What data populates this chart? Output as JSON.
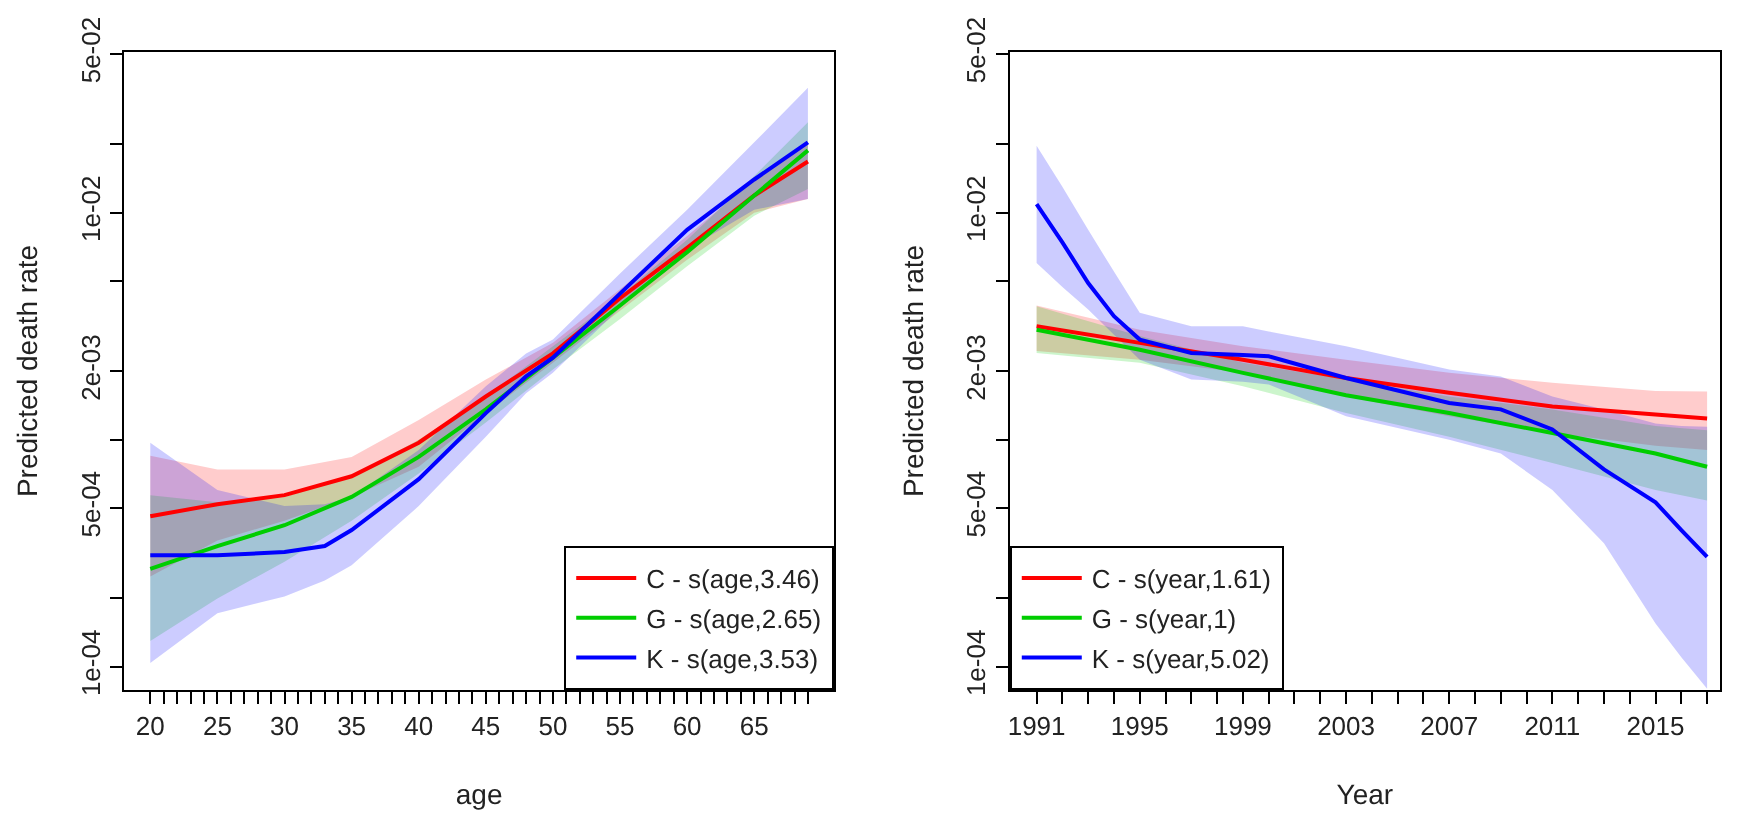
{
  "chart_data": [
    {
      "type": "line",
      "xlabel": "age",
      "ylabel": "Predicted death rate",
      "log": true,
      "legend": "bottom right",
      "marker": "none",
      "line_style": "solid",
      "xlim": [
        18.04,
        70.96
      ],
      "ylim": [
        7.9e-05,
        0.051
      ],
      "xticks": [
        20,
        {
          "value": 21,
          "label": null
        },
        {
          "value": 22,
          "label": null
        },
        {
          "value": 23,
          "label": null
        },
        {
          "value": 24,
          "label": null
        },
        25,
        {
          "value": 26,
          "label": null
        },
        {
          "value": 27,
          "label": null
        },
        {
          "value": 28,
          "label": null
        },
        {
          "value": 29,
          "label": null
        },
        30,
        {
          "value": 31,
          "label": null
        },
        {
          "value": 32,
          "label": null
        },
        {
          "value": 33,
          "label": null
        },
        {
          "value": 34,
          "label": null
        },
        35,
        {
          "value": 36,
          "label": null
        },
        {
          "value": 37,
          "label": null
        },
        {
          "value": 38,
          "label": null
        },
        {
          "value": 39,
          "label": null
        },
        40,
        {
          "value": 41,
          "label": null
        },
        {
          "value": 42,
          "label": null
        },
        {
          "value": 43,
          "label": null
        },
        {
          "value": 44,
          "label": null
        },
        45,
        {
          "value": 46,
          "label": null
        },
        {
          "value": 47,
          "label": null
        },
        {
          "value": 48,
          "label": null
        },
        {
          "value": 49,
          "label": null
        },
        50,
        {
          "value": 51,
          "label": null
        },
        {
          "value": 52,
          "label": null
        },
        {
          "value": 53,
          "label": null
        },
        {
          "value": 54,
          "label": null
        },
        55,
        {
          "value": 56,
          "label": null
        },
        {
          "value": 57,
          "label": null
        },
        {
          "value": 58,
          "label": null
        },
        {
          "value": 59,
          "label": null
        },
        60,
        {
          "value": 61,
          "label": null
        },
        {
          "value": 62,
          "label": null
        },
        {
          "value": 63,
          "label": null
        },
        {
          "value": 64,
          "label": null
        },
        65,
        {
          "value": 66,
          "label": null
        },
        {
          "value": 67,
          "label": null
        },
        {
          "value": 68,
          "label": null
        },
        {
          "value": 69,
          "label": null
        }
      ],
      "yticks": [
        {
          "value": 0.0001,
          "label": "1e-04"
        },
        {
          "value": 0.0002,
          "label": null
        },
        {
          "value": 0.0005,
          "label": "5e-04"
        },
        {
          "value": 0.001,
          "label": null
        },
        {
          "value": 0.002,
          "label": "2e-03"
        },
        {
          "value": 0.005,
          "label": null
        },
        {
          "value": 0.01,
          "label": "1e-02"
        },
        {
          "value": 0.02,
          "label": null
        },
        {
          "value": 0.05,
          "label": "5e-02"
        }
      ],
      "series": [
        {
          "name": "C - s(age,3.46)",
          "color": "#ff0000",
          "x": [
            20,
            25,
            30,
            35,
            40,
            45,
            50,
            55,
            60,
            65,
            69
          ],
          "values": [
            0.00046,
            0.00052,
            0.00057,
            0.00069,
            0.00097,
            0.00155,
            0.0024,
            0.0042,
            0.007,
            0.0119,
            0.0168
          ],
          "upper": [
            0.00085,
            0.00074,
            0.00074,
            0.00084,
            0.00122,
            0.00184,
            0.00267,
            0.0046,
            0.0079,
            0.014,
            0.0204
          ],
          "lower": [
            0.00025,
            0.00036,
            0.00044,
            0.00056,
            0.00076,
            0.00131,
            0.00218,
            0.0037,
            0.0062,
            0.01,
            0.0115
          ]
        },
        {
          "name": "G - s(age,2.65)",
          "color": "#00cd00",
          "x": [
            20,
            25,
            30,
            35,
            40,
            45,
            50,
            55,
            60,
            65,
            69
          ],
          "values": [
            0.00027,
            0.00034,
            0.00042,
            0.00056,
            0.00084,
            0.00136,
            0.0023,
            0.0039,
            0.0067,
            0.0119,
            0.0188
          ],
          "upper": [
            0.00057,
            0.00053,
            0.00056,
            0.00069,
            0.001,
            0.00155,
            0.00258,
            0.0043,
            0.0076,
            0.0145,
            0.025
          ],
          "lower": [
            0.00013,
            0.0002,
            0.00029,
            0.00044,
            0.00071,
            0.00119,
            0.00204,
            0.0034,
            0.0058,
            0.0097,
            0.0127
          ]
        },
        {
          "name": "K - s(age,3.53)",
          "color": "#0000ff",
          "x": [
            20,
            25,
            30,
            33,
            35,
            40,
            45,
            48,
            50,
            55,
            60,
            65,
            69
          ],
          "values": [
            0.00031,
            0.00031,
            0.00032,
            0.00034,
            0.0004,
            0.00067,
            0.00131,
            0.0019,
            0.0023,
            0.0044,
            0.0084,
            0.014,
            0.0204
          ],
          "upper": [
            0.00097,
            0.0006,
            0.00051,
            0.00052,
            0.00056,
            0.0009,
            0.00172,
            0.0024,
            0.00276,
            0.0054,
            0.0103,
            0.0204,
            0.0355
          ],
          "lower": [
            0.000104,
            0.000172,
            0.000204,
            0.00024,
            0.00028,
            0.00051,
            0.00103,
            0.0016,
            0.00197,
            0.0038,
            0.0069,
            0.0103,
            0.0115
          ]
        }
      ]
    },
    {
      "type": "line",
      "xlabel": "Year",
      "ylabel": "Predicted death rate",
      "log": true,
      "legend": "bottom left",
      "marker": "none",
      "line_style": "solid",
      "xlim": [
        1989.96,
        2017.5
      ],
      "ylim": [
        7.9e-05,
        0.051
      ],
      "xticks": [
        1991,
        {
          "value": 1992,
          "label": null
        },
        {
          "value": 1993,
          "label": null
        },
        {
          "value": 1994,
          "label": null
        },
        1995,
        {
          "value": 1996,
          "label": null
        },
        {
          "value": 1997,
          "label": null
        },
        {
          "value": 1998,
          "label": null
        },
        1999,
        {
          "value": 2000,
          "label": null
        },
        {
          "value": 2001,
          "label": null
        },
        {
          "value": 2002,
          "label": null
        },
        2003,
        {
          "value": 2004,
          "label": null
        },
        {
          "value": 2005,
          "label": null
        },
        {
          "value": 2006,
          "label": null
        },
        2007,
        {
          "value": 2008,
          "label": null
        },
        {
          "value": 2009,
          "label": null
        },
        {
          "value": 2010,
          "label": null
        },
        2011,
        {
          "value": 2012,
          "label": null
        },
        {
          "value": 2013,
          "label": null
        },
        {
          "value": 2014,
          "label": null
        },
        2015,
        {
          "value": 2016,
          "label": null
        },
        {
          "value": 2017,
          "label": null
        }
      ],
      "yticks": [
        {
          "value": 0.0001,
          "label": "1e-04"
        },
        {
          "value": 0.0002,
          "label": null
        },
        {
          "value": 0.0005,
          "label": "5e-04"
        },
        {
          "value": 0.001,
          "label": null
        },
        {
          "value": 0.002,
          "label": "2e-03"
        },
        {
          "value": 0.005,
          "label": null
        },
        {
          "value": 0.01,
          "label": "1e-02"
        },
        {
          "value": 0.02,
          "label": null
        },
        {
          "value": 0.05,
          "label": "5e-02"
        }
      ],
      "series": [
        {
          "name": "C - s(year,1.61)",
          "color": "#ff0000",
          "x": [
            1991,
            1995,
            1999,
            2003,
            2007,
            2011,
            2015,
            2017
          ],
          "values": [
            0.00316,
            0.00267,
            0.00225,
            0.00187,
            0.00161,
            0.0014,
            0.00129,
            0.00124
          ],
          "upper": [
            0.0039,
            0.00305,
            0.00258,
            0.00225,
            0.00197,
            0.00178,
            0.00164,
            0.00163
          ],
          "lower": [
            0.00246,
            0.00225,
            0.00197,
            0.00155,
            0.00127,
            0.00107,
            0.00094,
            0.0009
          ]
        },
        {
          "name": "G - s(year,1)",
          "color": "#00cd00",
          "x": [
            1991,
            1995,
            1999,
            2003,
            2007,
            2011,
            2015,
            2017
          ],
          "values": [
            0.00305,
            0.00249,
            0.00197,
            0.00157,
            0.00131,
            0.00107,
            0.00087,
            0.00076
          ],
          "upper": [
            0.00387,
            0.00286,
            0.00218,
            0.00184,
            0.00155,
            0.00136,
            0.00115,
            0.0011
          ],
          "lower": [
            0.00241,
            0.00218,
            0.00172,
            0.00131,
            0.00103,
            0.00079,
            0.0006,
            0.00054
          ]
        },
        {
          "name": "K - s(year,5.02)",
          "color": "#0000ff",
          "x": [
            1991,
            1992,
            1993,
            1994,
            1995,
            1997,
            1999,
            2000,
            2003,
            2007,
            2009,
            2011,
            2013,
            2015,
            2016,
            2017
          ],
          "values": [
            0.0109,
            0.0074,
            0.0049,
            0.0035,
            0.00276,
            0.00241,
            0.00236,
            0.00233,
            0.00187,
            0.00145,
            0.00136,
            0.00111,
            0.00074,
            0.00053,
            0.0004,
            0.000305
          ],
          "upper": [
            0.0197,
            0.013,
            0.0084,
            0.0055,
            0.00362,
            0.00316,
            0.00316,
            0.003,
            0.00258,
            0.00204,
            0.0019,
            0.00155,
            0.00136,
            0.00118,
            0.00115,
            0.00114
          ],
          "lower": [
            0.006,
            0.0047,
            0.00375,
            0.0029,
            0.00225,
            0.00184,
            0.0018,
            0.00175,
            0.00127,
            0.001,
            0.00087,
            0.0006,
            0.00035,
            0.000155,
            0.00011,
            8e-05
          ]
        }
      ]
    }
  ]
}
